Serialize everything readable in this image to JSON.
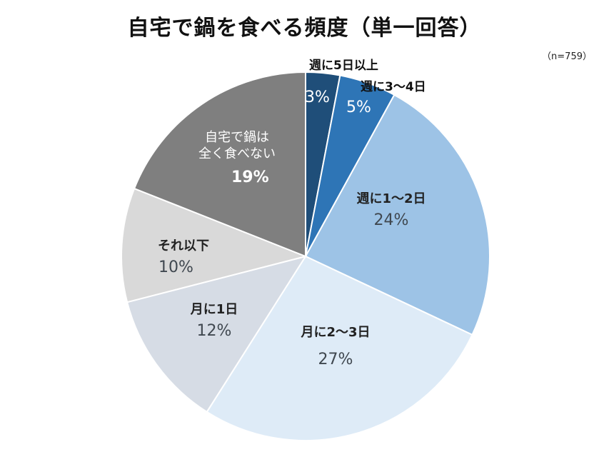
{
  "header": {
    "title": "自宅で鍋を食べる頻度（単一回答）",
    "sample": "（n=759）"
  },
  "chart_data": {
    "type": "pie",
    "title": "自宅で鍋を食べる頻度（単一回答）",
    "note": "（n=759）",
    "start_angle": "12 o'clock, clockwise",
    "categories": [
      "週に5日以上",
      "週に3～4日",
      "週に1～2日",
      "月に2～3日",
      "月に1日",
      "それ以下",
      "自宅で鍋は全く食べない"
    ],
    "values": [
      3,
      5,
      24,
      27,
      12,
      10,
      19
    ],
    "unit": "%",
    "colors": [
      "#1f4e79",
      "#2e75b6",
      "#9dc3e6",
      "#deebf7",
      "#d6dce5",
      "#d9d9d9",
      "#7f7f7f"
    ]
  },
  "labels": {
    "s0": {
      "name": "週に5日以上",
      "pct": "3%"
    },
    "s1": {
      "name": "週に3～4日",
      "pct": "5%"
    },
    "s2": {
      "name": "週に1～2日",
      "pct": "24%"
    },
    "s3": {
      "name": "月に2～3日",
      "pct": "27%"
    },
    "s4": {
      "name": "月に1日",
      "pct": "12%"
    },
    "s5": {
      "name": "それ以下",
      "pct": "10%"
    },
    "s6": {
      "name_line1": "自宅で鍋は",
      "name_line2": "全く食べない",
      "pct": "19%"
    }
  }
}
